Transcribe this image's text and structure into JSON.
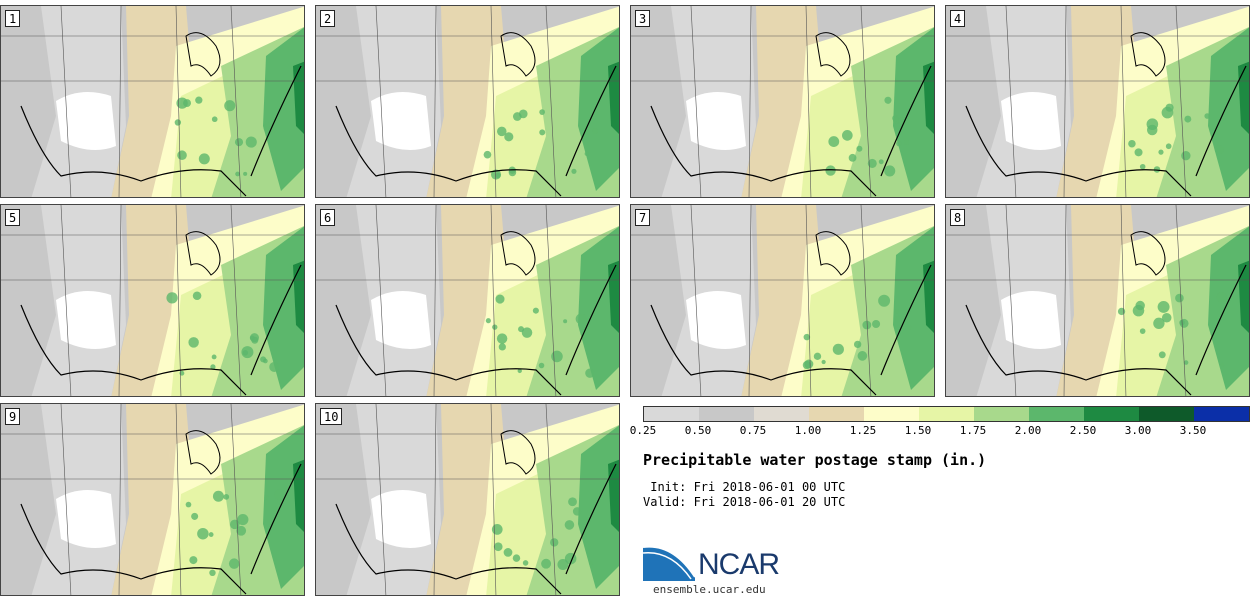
{
  "members": [
    "1",
    "2",
    "3",
    "4",
    "5",
    "6",
    "7",
    "8",
    "9",
    "10"
  ],
  "legend": {
    "ticks": [
      "0.25",
      "0.50",
      "0.75",
      "1.00",
      "1.25",
      "1.50",
      "1.75",
      "2.00",
      "2.50",
      "3.00",
      "3.50"
    ],
    "colors": [
      "#d9d9d9",
      "#c8c8c8",
      "#e0dbd2",
      "#e6d7b0",
      "#fdfdc9",
      "#e6f5a6",
      "#a8d98c",
      "#5cb76c",
      "#1e8a42",
      "#0e5a2a",
      "#0b2fa8"
    ]
  },
  "title": "Precipitable water postage stamp (in.)",
  "init_line": " Init: Fri 2018-06-01 00 UTC",
  "valid_line": "Valid: Fri 2018-06-01 20 UTC",
  "logo_text": "NCAR",
  "site": "ensemble.ucar.edu"
}
